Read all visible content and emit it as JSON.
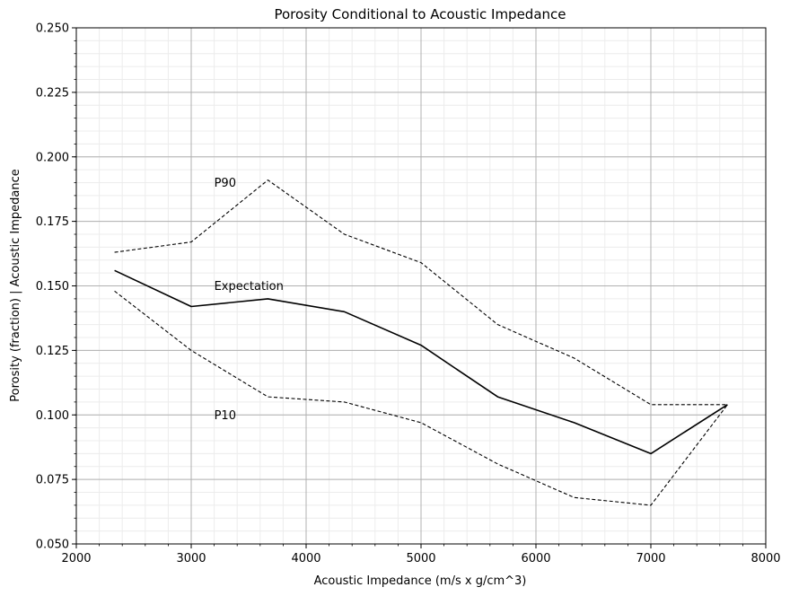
{
  "chart_data": {
    "type": "line",
    "title": "Porosity Conditional to Acoustic Impedance",
    "xlabel": "Acoustic Impedance (m/s x g/cm^3)",
    "ylabel": "Porosity (fraction) | Acoustic Impedance",
    "xlim": [
      2000,
      8000
    ],
    "ylim": [
      0.05,
      0.25
    ],
    "xticks": [
      "2000",
      "3000",
      "4000",
      "5000",
      "6000",
      "7000",
      "8000"
    ],
    "yticks": [
      "0.050",
      "0.075",
      "0.100",
      "0.125",
      "0.150",
      "0.175",
      "0.200",
      "0.225",
      "0.250"
    ],
    "grid": true,
    "x": [
      2333,
      3000,
      3667,
      4333,
      5000,
      5667,
      6333,
      7000,
      7667
    ],
    "series": [
      {
        "name": "P90",
        "style": "dashed",
        "color": "#000000",
        "values": [
          0.163,
          0.167,
          0.191,
          0.17,
          0.159,
          0.135,
          0.122,
          0.104,
          0.104
        ]
      },
      {
        "name": "Expectation",
        "style": "solid",
        "color": "#000000",
        "values": [
          0.156,
          0.142,
          0.145,
          0.14,
          0.127,
          0.107,
          0.097,
          0.085,
          0.104
        ]
      },
      {
        "name": "P10",
        "style": "dashed",
        "color": "#000000",
        "values": [
          0.148,
          0.125,
          0.107,
          0.105,
          0.097,
          0.081,
          0.068,
          0.065,
          0.104
        ]
      }
    ],
    "annotations": [
      {
        "text": "P90",
        "x": 3200,
        "y": 0.19
      },
      {
        "text": "Expectation",
        "x": 3200,
        "y": 0.15
      },
      {
        "text": "P10",
        "x": 3200,
        "y": 0.1
      }
    ]
  }
}
